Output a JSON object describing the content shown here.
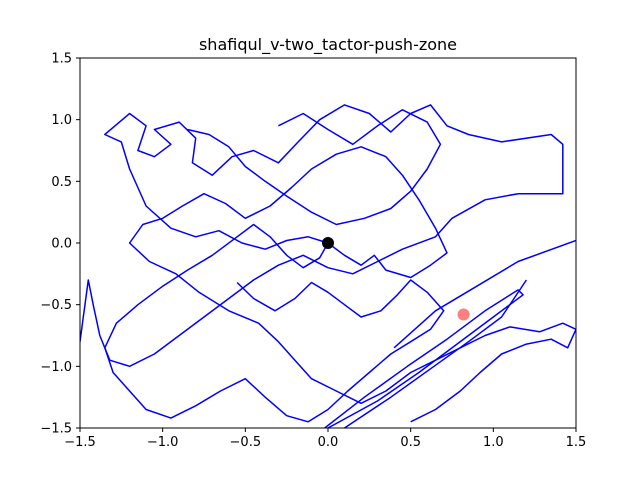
{
  "chart_data": {
    "type": "line",
    "title": "shafiqul_v-two_tactor-push-zone",
    "xlabel": "",
    "ylabel": "",
    "xlim": [
      -1.5,
      1.5
    ],
    "ylim": [
      -1.5,
      1.5
    ],
    "xticks": [
      -1.5,
      -1.0,
      -0.5,
      0.0,
      0.5,
      1.0,
      1.5
    ],
    "yticks": [
      -1.5,
      -1.0,
      -0.5,
      0.0,
      0.5,
      1.0,
      1.5
    ],
    "xtick_labels": [
      "−1.5",
      "−1.0",
      "−0.5",
      "0.0",
      "0.5",
      "1.0",
      "1.5"
    ],
    "ytick_labels": [
      "−1.5",
      "−1.0",
      "−0.5",
      "0.0",
      "0.5",
      "1.0",
      "1.5"
    ],
    "grid": false,
    "colors": {
      "path": "#0000ff",
      "start": "#000000",
      "target": "#ff7f7f"
    },
    "start_point": {
      "x": 0.0,
      "y": 0.0
    },
    "target_point": {
      "x": 0.82,
      "y": -0.58
    },
    "series": [
      {
        "values": [
          [
            0.0,
            0.0
          ],
          [
            -0.12,
            0.05
          ],
          [
            -0.25,
            0.02
          ],
          [
            -0.38,
            -0.05
          ],
          [
            -0.52,
            0.0
          ],
          [
            -0.66,
            0.1
          ],
          [
            -0.8,
            0.05
          ],
          [
            -0.95,
            0.12
          ],
          [
            -1.1,
            0.3
          ],
          [
            -1.2,
            0.6
          ],
          [
            -1.25,
            0.82
          ],
          [
            -1.35,
            0.88
          ],
          [
            -1.2,
            1.05
          ],
          [
            -1.1,
            0.95
          ],
          [
            -1.15,
            0.75
          ],
          [
            -1.05,
            0.7
          ],
          [
            -0.95,
            0.8
          ],
          [
            -1.05,
            0.92
          ],
          [
            -0.9,
            0.98
          ],
          [
            -0.8,
            0.85
          ],
          [
            -0.82,
            0.65
          ],
          [
            -0.7,
            0.55
          ],
          [
            -0.58,
            0.7
          ],
          [
            -0.45,
            0.75
          ],
          [
            -0.3,
            0.65
          ],
          [
            -0.18,
            0.82
          ],
          [
            -0.05,
            1.0
          ],
          [
            0.1,
            1.12
          ],
          [
            0.25,
            1.05
          ],
          [
            0.38,
            0.9
          ],
          [
            0.5,
            1.05
          ],
          [
            0.62,
            1.12
          ],
          [
            0.72,
            0.95
          ],
          [
            0.85,
            0.88
          ],
          [
            1.05,
            0.82
          ],
          [
            1.35,
            0.88
          ],
          [
            1.42,
            0.8
          ],
          [
            1.42,
            0.4
          ],
          [
            1.15,
            0.4
          ],
          [
            0.95,
            0.35
          ],
          [
            0.75,
            0.2
          ],
          [
            0.65,
            0.05
          ],
          [
            0.45,
            -0.05
          ],
          [
            0.3,
            -0.15
          ],
          [
            0.15,
            -0.25
          ],
          [
            0.0,
            -0.2
          ],
          [
            -0.15,
            -0.1
          ],
          [
            -0.3,
            -0.18
          ],
          [
            -0.45,
            -0.3
          ],
          [
            -0.6,
            -0.45
          ],
          [
            -0.75,
            -0.6
          ],
          [
            -0.9,
            -0.75
          ],
          [
            -1.05,
            -0.9
          ],
          [
            -1.2,
            -1.0
          ],
          [
            -1.32,
            -0.95
          ],
          [
            -1.38,
            -0.75
          ],
          [
            -1.42,
            -0.5
          ],
          [
            -1.45,
            -0.3
          ],
          [
            -1.48,
            -0.6
          ],
          [
            -1.5,
            -0.8
          ]
        ]
      },
      {
        "values": [
          [
            0.0,
            0.0
          ],
          [
            0.1,
            -0.1
          ],
          [
            0.2,
            -0.18
          ],
          [
            0.28,
            -0.1
          ],
          [
            0.35,
            -0.22
          ],
          [
            0.5,
            -0.28
          ],
          [
            0.62,
            -0.18
          ],
          [
            0.72,
            -0.08
          ],
          [
            0.65,
            0.12
          ],
          [
            0.55,
            0.35
          ],
          [
            0.45,
            0.55
          ],
          [
            0.35,
            0.7
          ],
          [
            0.2,
            0.78
          ],
          [
            0.05,
            0.72
          ],
          [
            -0.1,
            0.6
          ],
          [
            -0.22,
            0.45
          ],
          [
            -0.35,
            0.3
          ],
          [
            -0.5,
            0.2
          ],
          [
            -0.62,
            0.32
          ],
          [
            -0.75,
            0.4
          ],
          [
            -0.88,
            0.3
          ],
          [
            -1.0,
            0.2
          ],
          [
            -1.12,
            0.15
          ],
          [
            -1.2,
            0.0
          ],
          [
            -1.08,
            -0.15
          ],
          [
            -0.92,
            -0.25
          ],
          [
            -0.78,
            -0.4
          ],
          [
            -0.6,
            -0.55
          ],
          [
            -0.42,
            -0.65
          ],
          [
            -0.3,
            -0.8
          ],
          [
            -0.2,
            -0.95
          ],
          [
            -0.1,
            -1.1
          ],
          [
            0.05,
            -1.2
          ],
          [
            0.2,
            -1.3
          ],
          [
            0.35,
            -1.2
          ],
          [
            0.5,
            -1.05
          ],
          [
            0.65,
            -0.95
          ],
          [
            0.8,
            -0.85
          ],
          [
            0.95,
            -0.75
          ],
          [
            1.1,
            -0.68
          ],
          [
            1.28,
            -0.72
          ],
          [
            1.42,
            -0.65
          ],
          [
            1.5,
            -0.7
          ],
          [
            1.45,
            -0.85
          ],
          [
            1.35,
            -0.78
          ],
          [
            1.2,
            -0.82
          ],
          [
            1.05,
            -0.9
          ],
          [
            0.92,
            -1.05
          ],
          [
            0.8,
            -1.2
          ],
          [
            0.65,
            -1.35
          ],
          [
            0.5,
            -1.45
          ]
        ]
      },
      {
        "values": [
          [
            0.0,
            0.0
          ],
          [
            -0.05,
            -0.12
          ],
          [
            -0.15,
            -0.2
          ],
          [
            -0.25,
            -0.1
          ],
          [
            -0.35,
            0.05
          ],
          [
            -0.45,
            0.15
          ],
          [
            -0.55,
            0.05
          ],
          [
            -0.7,
            -0.1
          ],
          [
            -0.85,
            -0.22
          ],
          [
            -1.0,
            -0.35
          ],
          [
            -1.15,
            -0.5
          ],
          [
            -1.28,
            -0.65
          ],
          [
            -1.35,
            -0.85
          ],
          [
            -1.3,
            -1.05
          ],
          [
            -1.2,
            -1.2
          ],
          [
            -1.1,
            -1.35
          ],
          [
            -0.95,
            -1.42
          ],
          [
            -0.8,
            -1.32
          ],
          [
            -0.65,
            -1.2
          ],
          [
            -0.5,
            -1.1
          ],
          [
            -0.38,
            -1.25
          ],
          [
            -0.25,
            -1.4
          ],
          [
            -0.12,
            -1.45
          ],
          [
            0.0,
            -1.35
          ],
          [
            0.12,
            -1.2
          ],
          [
            0.25,
            -1.05
          ],
          [
            0.38,
            -0.9
          ],
          [
            0.5,
            -0.8
          ],
          [
            0.62,
            -0.7
          ],
          [
            0.7,
            -0.55
          ],
          [
            0.6,
            -0.4
          ],
          [
            0.5,
            -0.3
          ],
          [
            0.42,
            -0.42
          ],
          [
            0.32,
            -0.55
          ],
          [
            0.2,
            -0.6
          ],
          [
            0.1,
            -0.5
          ],
          [
            0.0,
            -0.4
          ],
          [
            -0.1,
            -0.32
          ],
          [
            -0.2,
            -0.45
          ],
          [
            -0.32,
            -0.55
          ],
          [
            -0.45,
            -0.45
          ],
          [
            -0.55,
            -0.32
          ]
        ]
      },
      {
        "values": [
          [
            0.0,
            -1.5
          ],
          [
            0.3,
            -1.28
          ],
          [
            0.55,
            -1.05
          ],
          [
            0.78,
            -0.82
          ],
          [
            1.0,
            -0.6
          ],
          [
            1.18,
            -0.42
          ],
          [
            1.15,
            -0.38
          ],
          [
            0.95,
            -0.55
          ],
          [
            0.72,
            -0.78
          ],
          [
            0.48,
            -1.0
          ],
          [
            0.22,
            -1.25
          ],
          [
            -0.02,
            -1.5
          ]
        ]
      },
      {
        "values": [
          [
            0.1,
            -1.5
          ],
          [
            0.38,
            -1.25
          ],
          [
            0.62,
            -1.02
          ],
          [
            0.85,
            -0.8
          ],
          [
            1.05,
            -0.6
          ],
          [
            1.2,
            -0.3
          ]
        ]
      },
      {
        "values": [
          [
            0.4,
            -0.85
          ],
          [
            0.65,
            -0.55
          ],
          [
            0.9,
            -0.35
          ],
          [
            1.15,
            -0.15
          ],
          [
            1.5,
            0.02
          ]
        ]
      },
      {
        "values": [
          [
            -0.3,
            0.95
          ],
          [
            -0.15,
            1.05
          ],
          [
            0.0,
            0.92
          ],
          [
            0.15,
            0.8
          ],
          [
            0.3,
            0.95
          ],
          [
            0.45,
            1.08
          ],
          [
            0.6,
            0.98
          ],
          [
            0.68,
            0.8
          ],
          [
            0.6,
            0.6
          ],
          [
            0.5,
            0.42
          ],
          [
            0.38,
            0.28
          ],
          [
            0.22,
            0.2
          ],
          [
            0.05,
            0.15
          ],
          [
            -0.1,
            0.25
          ],
          [
            -0.25,
            0.38
          ],
          [
            -0.38,
            0.5
          ],
          [
            -0.5,
            0.62
          ],
          [
            -0.6,
            0.78
          ],
          [
            -0.72,
            0.88
          ],
          [
            -0.85,
            0.92
          ]
        ]
      }
    ]
  }
}
